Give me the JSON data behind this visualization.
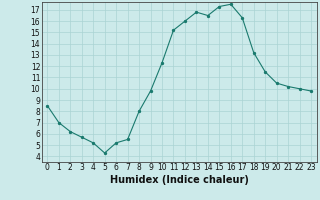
{
  "x": [
    0,
    1,
    2,
    3,
    4,
    5,
    6,
    7,
    8,
    9,
    10,
    11,
    12,
    13,
    14,
    15,
    16,
    17,
    18,
    19,
    20,
    21,
    22,
    23
  ],
  "y": [
    8.5,
    7.0,
    6.2,
    5.7,
    5.2,
    4.3,
    5.2,
    5.5,
    8.0,
    9.8,
    12.3,
    15.2,
    16.0,
    16.8,
    16.5,
    17.3,
    17.5,
    16.3,
    13.2,
    11.5,
    10.5,
    10.2,
    10.0,
    9.8
  ],
  "xlabel": "Humidex (Indice chaleur)",
  "xlim": [
    -0.5,
    23.5
  ],
  "ylim": [
    3.5,
    17.7
  ],
  "yticks": [
    4,
    5,
    6,
    7,
    8,
    9,
    10,
    11,
    12,
    13,
    14,
    15,
    16,
    17
  ],
  "xticks": [
    0,
    1,
    2,
    3,
    4,
    5,
    6,
    7,
    8,
    9,
    10,
    11,
    12,
    13,
    14,
    15,
    16,
    17,
    18,
    19,
    20,
    21,
    22,
    23
  ],
  "line_color": "#1a7a6e",
  "marker_color": "#1a7a6e",
  "bg_color": "#cceaea",
  "grid_color": "#aad4d4",
  "tick_label_fontsize": 5.5,
  "xlabel_fontsize": 7.0
}
